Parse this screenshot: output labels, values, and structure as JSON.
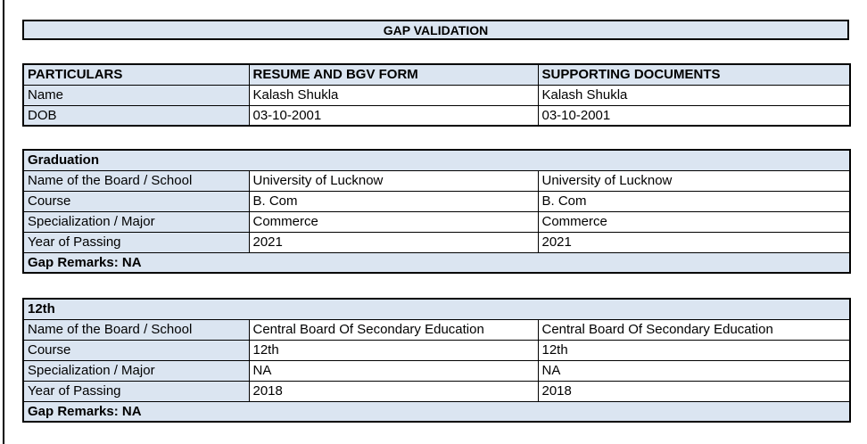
{
  "page": {
    "title": "GAP VALIDATION"
  },
  "colors": {
    "header_fill": "#dbe5f1",
    "border": "#000000",
    "background": "#ffffff",
    "text": "#000000"
  },
  "info_table": {
    "headers": [
      "PARTICULARS",
      "RESUME AND BGV FORM",
      "SUPPORTING DOCUMENTS"
    ],
    "rows": [
      {
        "label": "Name",
        "resume": "Kalash Shukla",
        "supporting": "Kalash Shukla"
      },
      {
        "label": "DOB",
        "resume": "03-10-2001",
        "supporting": "03-10-2001"
      }
    ]
  },
  "sections": [
    {
      "title": "Graduation",
      "rows": [
        {
          "label": "Name of the Board / School",
          "resume": "University of Lucknow",
          "supporting": "University of Lucknow"
        },
        {
          "label": "Course",
          "resume": "B. Com",
          "supporting": "B. Com"
        },
        {
          "label": "Specialization / Major",
          "resume": "Commerce",
          "supporting": "Commerce"
        },
        {
          "label": "Year of Passing",
          "resume": "2021",
          "supporting": "2021"
        }
      ],
      "gap_remarks": "Gap Remarks: NA"
    },
    {
      "title": "12th",
      "rows": [
        {
          "label": "Name of the Board / School",
          "resume": "Central Board Of Secondary Education",
          "supporting": "Central Board Of Secondary Education"
        },
        {
          "label": "Course",
          "resume": "12th",
          "supporting": "12th"
        },
        {
          "label": "Specialization / Major",
          "resume": "NA",
          "supporting": "NA"
        },
        {
          "label": "Year of Passing",
          "resume": "2018",
          "supporting": "2018"
        }
      ],
      "gap_remarks": "Gap Remarks: NA"
    }
  ]
}
